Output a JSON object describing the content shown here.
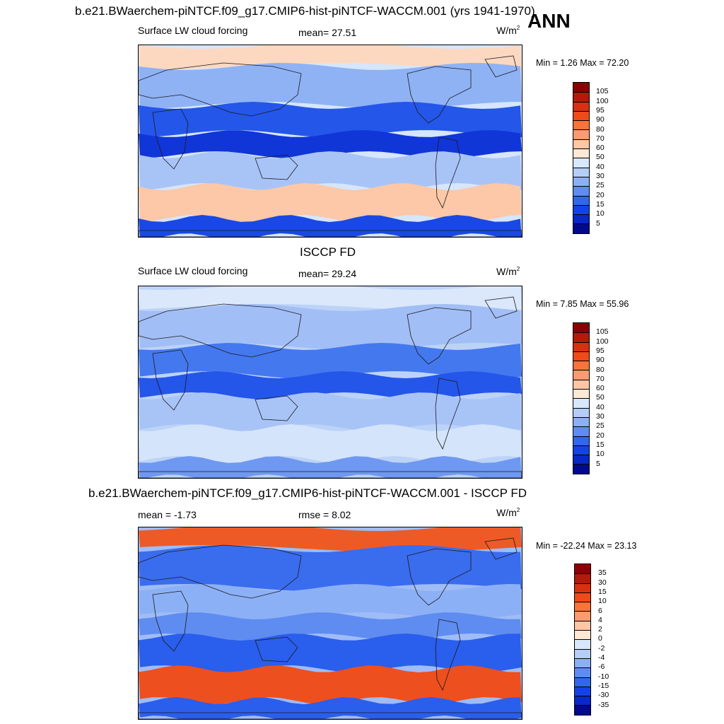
{
  "header": {
    "title": "b.e21.BWaerchem-piNTCF.f09_g17.CMIP6-hist-piNTCF-WACCM.001 (yrs 1941-1970)",
    "season": "ANN"
  },
  "panels": [
    {
      "title": "",
      "left_label": "Surface LW cloud forcing",
      "center_label": "mean=  27.51",
      "units": "W/m",
      "units_exp": "2",
      "minmax": "Min =   1.26 Max =  72.20",
      "colorbar": {
        "labels": [
          "105",
          "100",
          "95",
          "90",
          "80",
          "70",
          "60",
          "50",
          "40",
          "30",
          "25",
          "20",
          "15",
          "10",
          "5"
        ],
        "colors": [
          "#8b0000",
          "#b31a0a",
          "#d93010",
          "#f04a1a",
          "#f9733a",
          "#fc9a70",
          "#fec6a4",
          "#fde8d6",
          "#d8e8fb",
          "#b4cef8",
          "#8cb0f5",
          "#5f8cf0",
          "#3366ee",
          "#1542e8",
          "#0828c8",
          "#020a8c"
        ]
      },
      "fields": {
        "background": "#d6e6fb",
        "bands": [
          {
            "label": "arctic",
            "color": "#fdd8c0"
          },
          {
            "label": "north-midlat",
            "color": "#8fb2f5"
          },
          {
            "label": "tropics",
            "color": "#2456ea"
          },
          {
            "label": "itcz",
            "color": "#1036d8"
          },
          {
            "label": "south-midlat",
            "color": "#a8c4f7"
          },
          {
            "label": "southern-ocean",
            "color": "#fcc8a8"
          },
          {
            "label": "antarctic",
            "color": "#1a48e4"
          }
        ]
      }
    },
    {
      "title": "ISCCP FD",
      "left_label": "Surface LW cloud forcing",
      "center_label": "mean=  29.24",
      "units": "W/m",
      "units_exp": "2",
      "minmax": "Min =   7.85 Max =  55.96",
      "colorbar": {
        "labels": [
          "105",
          "100",
          "95",
          "90",
          "80",
          "70",
          "60",
          "50",
          "40",
          "30",
          "25",
          "20",
          "15",
          "10",
          "5"
        ],
        "colors": [
          "#8b0000",
          "#b31a0a",
          "#d93010",
          "#f04a1a",
          "#f9733a",
          "#fc9a70",
          "#fec6a4",
          "#fde8d6",
          "#d8e8fb",
          "#b4cef8",
          "#8cb0f5",
          "#5f8cf0",
          "#3366ee",
          "#1542e8",
          "#0828c8",
          "#020a8c"
        ]
      },
      "fields": {
        "background": "#bcd3f8",
        "bands": [
          {
            "label": "arctic",
            "color": "#dbe8fb"
          },
          {
            "label": "north-midlat",
            "color": "#a2bef6"
          },
          {
            "label": "tropics",
            "color": "#4478ee"
          },
          {
            "label": "itcz",
            "color": "#2456ea"
          },
          {
            "label": "south-midlat",
            "color": "#a8c4f7"
          },
          {
            "label": "southern-ocean",
            "color": "#d4e4fa"
          },
          {
            "label": "antarctic",
            "color": "#6f98f2"
          }
        ]
      }
    },
    {
      "title": "b.e21.BWaerchem-piNTCF.f09_g17.CMIP6-hist-piNTCF-WACCM.001 - ISCCP FD",
      "left_label": "mean =  -1.73",
      "center_label": "rmse =   8.02",
      "units": "W/m",
      "units_exp": "2",
      "minmax": "Min = -22.24 Max =  23.13",
      "colorbar": {
        "labels": [
          "35",
          "30",
          "15",
          "10",
          "6",
          "4",
          "2",
          "0",
          "-2",
          "-4",
          "-6",
          "-10",
          "-15",
          "-30",
          "-35"
        ],
        "colors": [
          "#8b0000",
          "#b31a0a",
          "#d93010",
          "#f04a1a",
          "#f9733a",
          "#fc9a70",
          "#fec6a4",
          "#fde8d6",
          "#d8e8fb",
          "#b4cef8",
          "#8cb0f5",
          "#5f8cf0",
          "#3366ee",
          "#1542e8",
          "#0828c8",
          "#020a8c"
        ]
      },
      "fields": {
        "background": "#9fbcf6",
        "bands": [
          {
            "label": "arctic",
            "color": "#ee5a26"
          },
          {
            "label": "north-midlat",
            "color": "#3a6cee"
          },
          {
            "label": "tropics",
            "color": "#8cb0f5"
          },
          {
            "label": "itcz",
            "color": "#5f8cf0"
          },
          {
            "label": "south-midlat",
            "color": "#2a5eec"
          },
          {
            "label": "southern-ocean",
            "color": "#ee4f1e"
          },
          {
            "label": "antarctic",
            "color": "#2a5eec"
          }
        ]
      }
    }
  ]
}
